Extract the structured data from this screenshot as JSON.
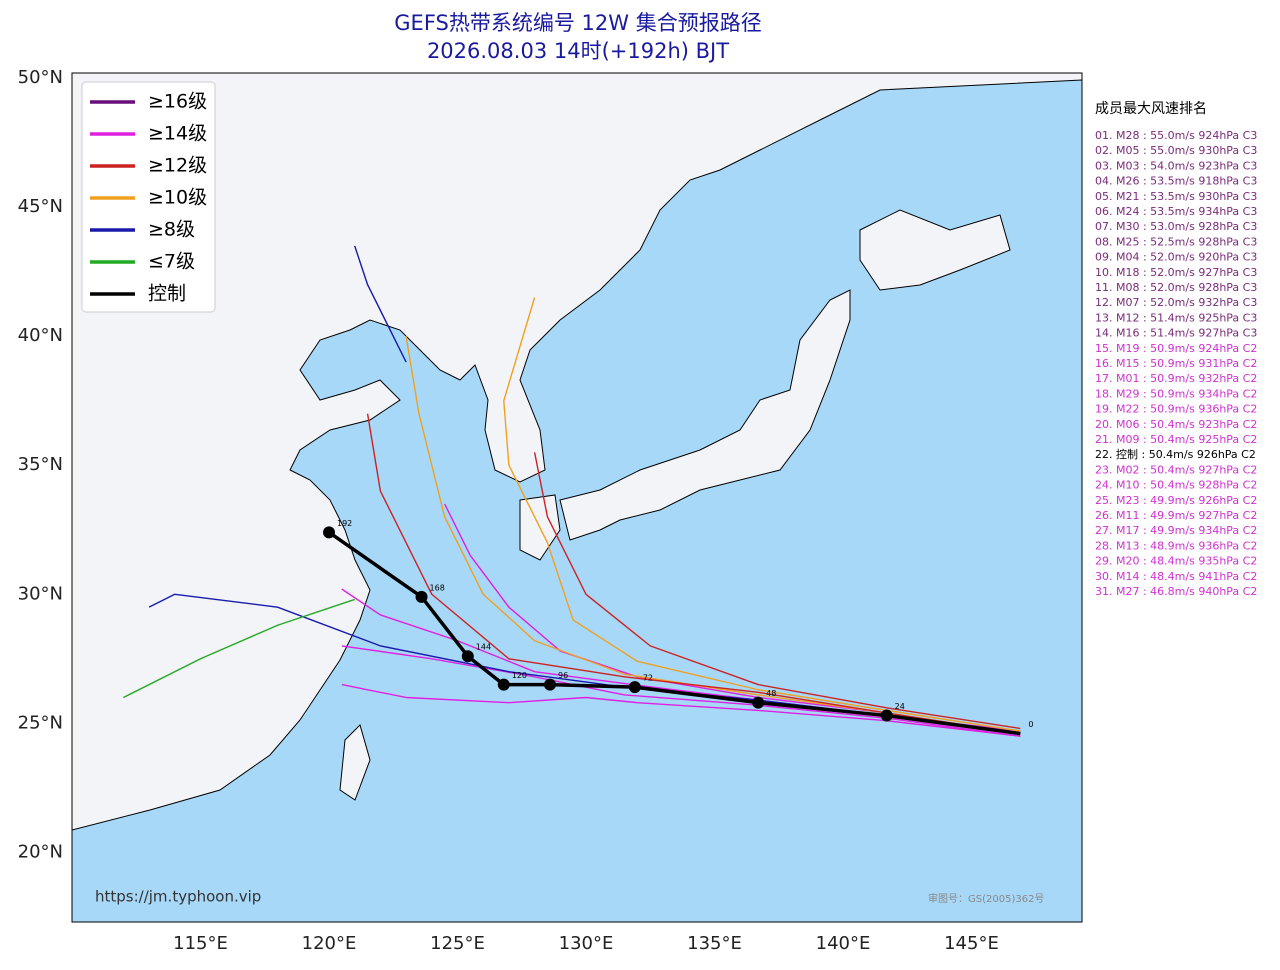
{
  "chart_data": {
    "type": "track-map",
    "title": "GEFS热带系统编号 12W 集合预报路径",
    "subtitle": "2026.08.03 14时(+192h) BJT",
    "xlim": [
      110,
      149.3
    ],
    "ylim": [
      17.3,
      50.2
    ],
    "xticks": [
      {
        "value": 115,
        "label": "115°E"
      },
      {
        "value": 120,
        "label": "120°E"
      },
      {
        "value": 125,
        "label": "125°E"
      },
      {
        "value": 130,
        "label": "130°E"
      },
      {
        "value": 135,
        "label": "135°E"
      },
      {
        "value": 140,
        "label": "140°E"
      },
      {
        "value": 145,
        "label": "145°E"
      }
    ],
    "yticks": [
      {
        "value": 20,
        "label": "20°N"
      },
      {
        "value": 25,
        "label": "25°N"
      },
      {
        "value": 30,
        "label": "30°N"
      },
      {
        "value": 35,
        "label": "35°N"
      },
      {
        "value": 40,
        "label": "40°N"
      },
      {
        "value": 45,
        "label": "45°N"
      },
      {
        "value": 50,
        "label": "50°N"
      }
    ],
    "grid": true,
    "legend_position": "upper left",
    "legend": [
      {
        "name": "≥16级",
        "color": "#6a0f7a"
      },
      {
        "name": "≥14级",
        "color": "#e020e0"
      },
      {
        "name": "≥12级",
        "color": "#cc2222"
      },
      {
        "name": "≥10级",
        "color": "#f0a020"
      },
      {
        "name": "≥8级",
        "color": "#1a1aaa"
      },
      {
        "name": "≤7级",
        "color": "#22aa22"
      },
      {
        "name": "控制",
        "color": "#000000"
      }
    ],
    "tracks": [
      {
        "color": "#e020e0",
        "lon": [
          146.9,
          141.7,
          136.7,
          132,
          129,
          127,
          125.5,
          124.5
        ],
        "lat": [
          24.6,
          25.4,
          26,
          26.8,
          27.8,
          29.5,
          31.5,
          33.5
        ]
      },
      {
        "color": "#e020e0",
        "lon": [
          146.9,
          141.7,
          136.7,
          131.5,
          128,
          124,
          120.5
        ],
        "lat": [
          24.5,
          25.2,
          25.7,
          26.1,
          26.8,
          27.5,
          28
        ]
      },
      {
        "color": "#e020e0",
        "lon": [
          146.9,
          141.7,
          136.7,
          131.8,
          128,
          125,
          122,
          120.5
        ],
        "lat": [
          24.7,
          25.3,
          25.9,
          26.5,
          27,
          28.2,
          29.2,
          30.2
        ]
      },
      {
        "color": "#e020e0",
        "lon": [
          146.9,
          141.7,
          136.7,
          132,
          130,
          127,
          123,
          120.5
        ],
        "lat": [
          24.5,
          25.1,
          25.5,
          25.8,
          26,
          25.8,
          26,
          26.5
        ]
      },
      {
        "color": "#cc2222",
        "lon": [
          146.9,
          141.7,
          136.7,
          132.5,
          130,
          128.5,
          128
        ],
        "lat": [
          24.8,
          25.6,
          26.5,
          28,
          30,
          33,
          35.5
        ]
      },
      {
        "color": "#f0a020",
        "lon": [
          146.9,
          141.7,
          136.7,
          132,
          129.5,
          128.5,
          127,
          126.8,
          128
        ],
        "lat": [
          24.7,
          25.5,
          26.3,
          27.4,
          29,
          32,
          35,
          37.5,
          41.5
        ]
      },
      {
        "color": "#f0a020",
        "lon": [
          146.9,
          141.7,
          136.7,
          131.5,
          128,
          126,
          124.5,
          123.5,
          123
        ],
        "lat": [
          24.6,
          25.4,
          26.1,
          26.9,
          28.2,
          30,
          33,
          37,
          40
        ]
      },
      {
        "color": "#cc2222",
        "lon": [
          146.9,
          141.7,
          136.7,
          131.5,
          127,
          124,
          122,
          121.5
        ],
        "lat": [
          24.6,
          25.4,
          26.2,
          26.8,
          27.5,
          30,
          34,
          37
        ]
      },
      {
        "color": "#1a1aaa",
        "lon": [
          146.9,
          141.7,
          136.7,
          131.5,
          127,
          122,
          118,
          114,
          113
        ],
        "lat": [
          24.6,
          25.3,
          25.9,
          26.4,
          27,
          28,
          29.5,
          30,
          29.5
        ]
      },
      {
        "color": "#22aa22",
        "lon": [
          121,
          118,
          115,
          112
        ],
        "lat": [
          29.8,
          28.8,
          27.5,
          26
        ]
      },
      {
        "color": "#1a1aaa",
        "lon": [
          123,
          121.5,
          121
        ],
        "lat": [
          39,
          42,
          43.5
        ]
      }
    ],
    "control": {
      "lon": [
        120,
        123.6,
        125.4,
        126.8,
        128.6,
        131.9,
        136.7,
        141.7,
        146.9
      ],
      "lat": [
        32.4,
        29.9,
        27.6,
        26.5,
        26.5,
        26.4,
        25.8,
        25.3,
        24.6
      ],
      "hours": [
        "192",
        "168",
        "144",
        "120",
        "96",
        "72",
        "48",
        "24",
        "0"
      ]
    },
    "ranking_title": "成员最大风速排名",
    "ranking": [
      {
        "text": "01. M28 : 55.0m/s 924hPa C3",
        "color": "#7a2a7a"
      },
      {
        "text": "02. M05 : 55.0m/s 930hPa C3",
        "color": "#7a2a7a"
      },
      {
        "text": "03. M03 : 54.0m/s 923hPa C3",
        "color": "#7a2a7a"
      },
      {
        "text": "04. M26 : 53.5m/s 918hPa C3",
        "color": "#7a2a7a"
      },
      {
        "text": "05. M21 : 53.5m/s 930hPa C3",
        "color": "#7a2a7a"
      },
      {
        "text": "06. M24 : 53.5m/s 934hPa C3",
        "color": "#7a2a7a"
      },
      {
        "text": "07. M30 : 53.0m/s 928hPa C3",
        "color": "#7a2a7a"
      },
      {
        "text": "08. M25 : 52.5m/s 928hPa C3",
        "color": "#7a2a7a"
      },
      {
        "text": "09. M04 : 52.0m/s 920hPa C3",
        "color": "#7a2a7a"
      },
      {
        "text": "10. M18 : 52.0m/s 927hPa C3",
        "color": "#7a2a7a"
      },
      {
        "text": "11. M08 : 52.0m/s 928hPa C3",
        "color": "#7a2a7a"
      },
      {
        "text": "12. M07 : 52.0m/s 932hPa C3",
        "color": "#7a2a7a"
      },
      {
        "text": "13. M12 : 51.4m/s 925hPa C3",
        "color": "#7a2a7a"
      },
      {
        "text": "14. M16 : 51.4m/s 927hPa C3",
        "color": "#7a2a7a"
      },
      {
        "text": "15. M19 : 50.9m/s 924hPa C2",
        "color": "#d030d0"
      },
      {
        "text": "16. M15 : 50.9m/s 931hPa C2",
        "color": "#d030d0"
      },
      {
        "text": "17. M01 : 50.9m/s 932hPa C2",
        "color": "#d030d0"
      },
      {
        "text": "18. M29 : 50.9m/s 934hPa C2",
        "color": "#d030d0"
      },
      {
        "text": "19. M22 : 50.9m/s 936hPa C2",
        "color": "#d030d0"
      },
      {
        "text": "20. M06 : 50.4m/s 923hPa C2",
        "color": "#d030d0"
      },
      {
        "text": "21. M09 : 50.4m/s 925hPa C2",
        "color": "#d030d0"
      },
      {
        "text": "22. 控制 : 50.4m/s 926hPa C2",
        "color": "#000000"
      },
      {
        "text": "23. M02 : 50.4m/s 927hPa C2",
        "color": "#d030d0"
      },
      {
        "text": "24. M10 : 50.4m/s 928hPa C2",
        "color": "#d030d0"
      },
      {
        "text": "25. M23 : 49.9m/s 926hPa C2",
        "color": "#d030d0"
      },
      {
        "text": "26. M11 : 49.9m/s 927hPa C2",
        "color": "#d030d0"
      },
      {
        "text": "27. M17 : 49.9m/s 934hPa C2",
        "color": "#d030d0"
      },
      {
        "text": "28. M13 : 48.9m/s 936hPa C2",
        "color": "#d030d0"
      },
      {
        "text": "29. M20 : 48.4m/s 935hPa C2",
        "color": "#d030d0"
      },
      {
        "text": "30. M14 : 48.4m/s 941hPa C2",
        "color": "#d030d0"
      },
      {
        "text": "31. M27 : 46.8m/s 940hPa C2",
        "color": "#d030d0"
      }
    ],
    "source": "https://jm.typhoon.vip",
    "map_approval": "审图号：GS(2005)362号"
  }
}
